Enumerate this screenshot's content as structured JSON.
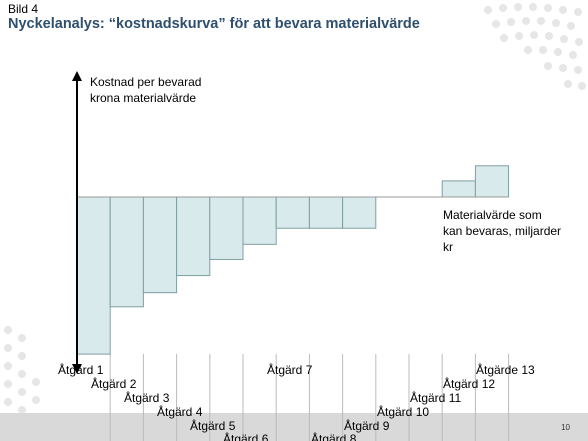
{
  "slide": {
    "label": "Bild 4",
    "title": "Nyckelanalys: “kostnadskurva” för att bevara materialvärde",
    "page_number": "10"
  },
  "colors": {
    "bar_fill": "#d9eaec",
    "bar_stroke": "#7f9fa3",
    "title": "#2f4f6f"
  },
  "chart_data": {
    "type": "bar",
    "title": "",
    "ylabel": [
      "Kostnad per bevarad",
      "krona materialvärde"
    ],
    "xlabel": [
      "Materialvärde som",
      "kan bevaras, miljarder",
      "kr"
    ],
    "categories": [
      "Åtgärd 1",
      "Åtgärd 2",
      "Åtgärd 3",
      "Åtgärd 4",
      "Åtgärd 5",
      "Åtgärd 6",
      "Åtgärd 7",
      "Åtgärd 8",
      "Åtgärd 9",
      "Åtgärd 10",
      "Åtgärd 11",
      "Åtgärd 12",
      "Åtgärde 13"
    ],
    "values": [
      -156,
      -109,
      -95,
      -78,
      -62,
      -47,
      -31,
      -31,
      -31,
      0,
      0,
      16,
      31
    ],
    "ylim": [
      -160,
      120
    ],
    "grid": false
  }
}
